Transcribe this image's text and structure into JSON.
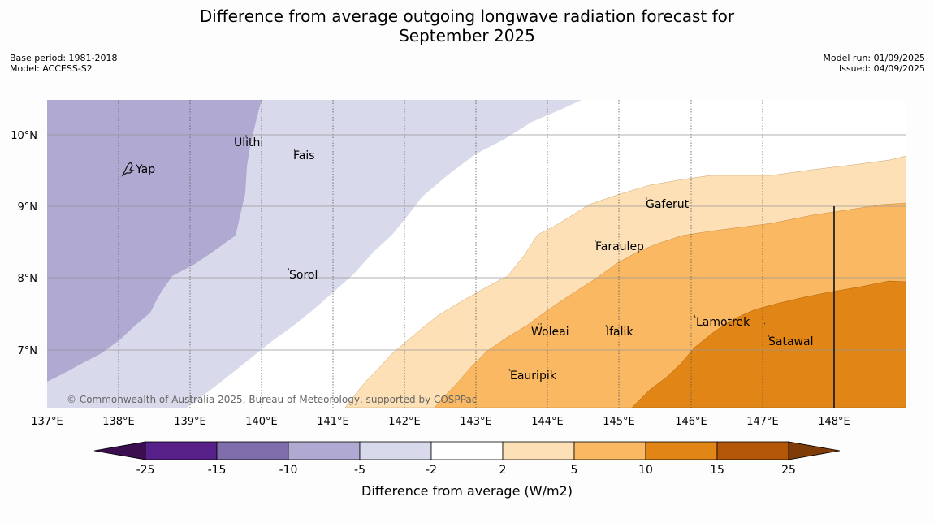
{
  "header": {
    "title_line1": "Difference from average outgoing longwave radiation forecast for",
    "title_line2": "September 2025",
    "base_period": "Base period: 1981-2018",
    "model": "Model: ACCESS-S2",
    "model_run": "Model run: 01/09/2025",
    "issued": "Issued: 04/09/2025"
  },
  "map": {
    "lon_ticks": [
      "137°E",
      "138°E",
      "139°E",
      "140°E",
      "141°E",
      "142°E",
      "143°E",
      "144°E",
      "145°E",
      "146°E",
      "147°E",
      "148°E"
    ],
    "lat_ticks": [
      "10°N",
      "9°N",
      "8°N",
      "7°N"
    ],
    "copyright": "© Commonwealth of Australia 2025, Bureau of Meteorology, supported by COSPPac",
    "places": [
      {
        "name": "Yap"
      },
      {
        "name": "Ulithi"
      },
      {
        "name": "Fais"
      },
      {
        "name": "Sorol"
      },
      {
        "name": "Gaferut"
      },
      {
        "name": "Faraulep"
      },
      {
        "name": "Woleai"
      },
      {
        "name": "Ifalik"
      },
      {
        "name": "Lamotrek"
      },
      {
        "name": "Satawal"
      },
      {
        "name": "Eauripik"
      }
    ]
  },
  "colorbar": {
    "ticks": [
      "-25",
      "-15",
      "-10",
      "-5",
      "-2",
      "2",
      "5",
      "10",
      "15",
      "25"
    ],
    "label": "Difference from average (W/m2)",
    "colors": [
      "#3b0f4f",
      "#572088",
      "#7f6eab",
      "#b0a9d1",
      "#d8d9ea",
      "#ffffff",
      "#fde0b5",
      "#fbb862",
      "#e08516",
      "#b45608",
      "#7f3b08"
    ]
  }
}
